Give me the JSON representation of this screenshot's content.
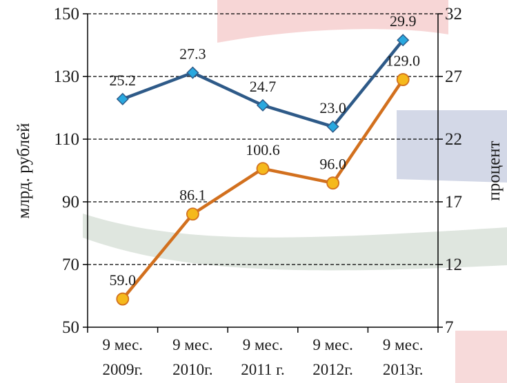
{
  "chart_data": {
    "type": "line",
    "categories": [
      [
        "9 мес.",
        "2009г."
      ],
      [
        "9 мес.",
        "2010г."
      ],
      [
        "9 мес.",
        "2011 г."
      ],
      [
        "9 мес.",
        "2012г."
      ],
      [
        "9 мес.",
        "2013г."
      ]
    ],
    "left_axis": {
      "label": "млрд. рублей",
      "range": [
        50,
        150
      ],
      "ticks": [
        "50",
        "70",
        "90",
        "110",
        "130",
        "150"
      ]
    },
    "right_axis": {
      "label": "процент",
      "range": [
        7,
        32
      ],
      "ticks": [
        "7",
        "12",
        "17",
        "22",
        "27",
        "32"
      ]
    },
    "grid": true,
    "legend": "none",
    "series": [
      {
        "axis": "right",
        "marker": "diamond",
        "color": "#2e5a88",
        "marker_color": "#29a8df",
        "values": [
          25.2,
          27.3,
          24.7,
          23.0,
          29.9
        ],
        "labels": [
          "25.2",
          "27.3",
          "24.7",
          "23.0",
          "29.9"
        ]
      },
      {
        "axis": "left",
        "marker": "circle",
        "color": "#d2701e",
        "marker_color": "#f5b91c",
        "values": [
          59.0,
          86.1,
          100.6,
          96.0,
          129.0
        ],
        "labels": [
          "59.0",
          "86.1",
          "100.6",
          "96.0",
          "129.0"
        ]
      }
    ]
  }
}
